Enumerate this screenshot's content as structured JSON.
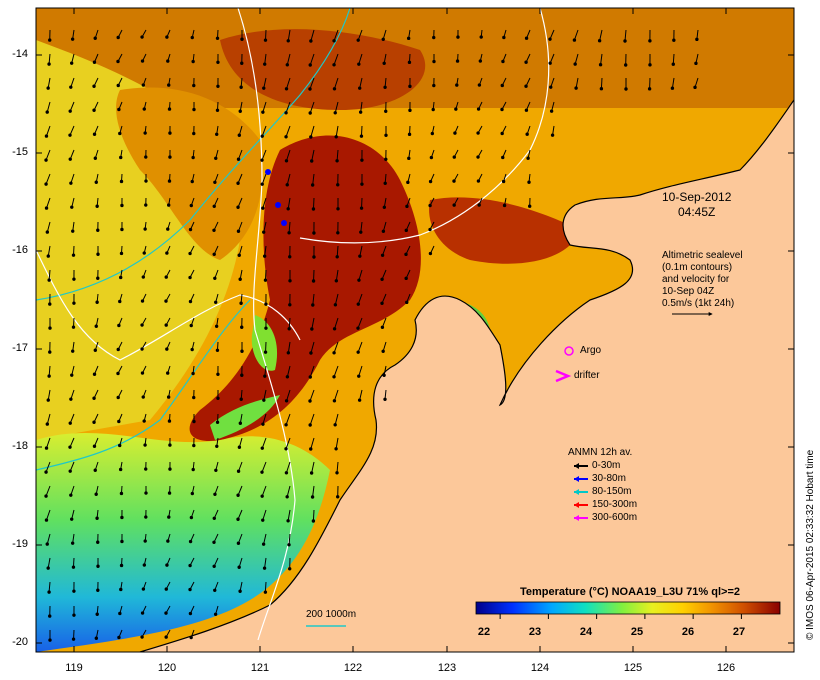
{
  "map": {
    "date_line1": "10-Sep-2012",
    "date_line2": "04:45Z",
    "altimetry_lines": [
      "Altimetric sealevel",
      "(0.1m contours)",
      "and velocity for",
      "10-Sep 04Z",
      "0.5m/s (1kt 24h)"
    ],
    "argo_label": "Argo",
    "drifter_label": "drifter",
    "legend_title": "ANMN 12h av.",
    "legend_items": [
      {
        "label": "0-30m",
        "color": "#000000"
      },
      {
        "label": "30-80m",
        "color": "#0000ff"
      },
      {
        "label": "80-150m",
        "color": "#00c8c8"
      },
      {
        "label": "150-300m",
        "color": "#ff0000"
      },
      {
        "label": "300-600m",
        "color": "#ff00ff"
      }
    ],
    "contour_legend": "200  1000m",
    "colorbar_title": "Temperature (°C) NOAA19_L3U 71% ql>=2",
    "colorbar_ticks": [
      "22",
      "23",
      "24",
      "25",
      "26",
      "27"
    ],
    "colorbar_range": [
      21.5,
      27.8
    ],
    "credit": "© IMOS 06-Apr-2015 02:33:32 Hobart time",
    "lat_ticks": [
      "-14",
      "-15",
      "-16",
      "-17",
      "-18",
      "-19",
      "-20"
    ],
    "lon_ticks": [
      "119",
      "120",
      "121",
      "122",
      "123",
      "124",
      "125",
      "126"
    ],
    "colors": {
      "land": "#fcc89a",
      "isobath_200": "#20c8c8",
      "isobath_1000": "#ffffff",
      "argo": "#ff00ff"
    }
  }
}
